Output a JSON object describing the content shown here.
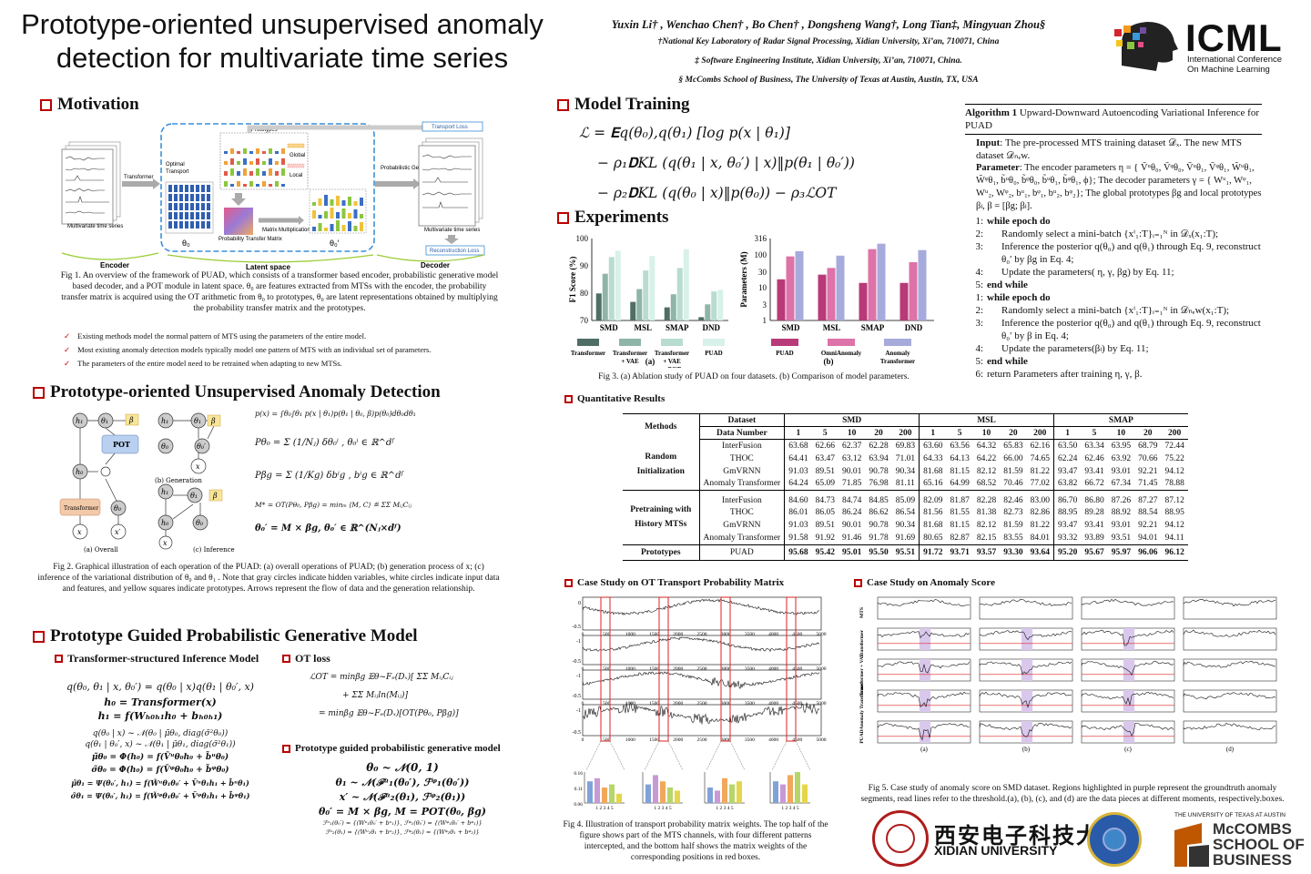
{
  "title": "Prototype-oriented unsupervised anomaly detection for multivariate time series",
  "authors": "Yuxin Li† , Wenchao Chen† , Bo Chen† , Dongsheng Wang†, Long Tian‡, Mingyuan Zhou§",
  "affiliations": [
    "†National Key Laboratory of Radar Signal Processing, Xidian University, Xi’an, 710071, China",
    "‡ Software Engineering Institute, Xidian University, Xi’an, 710071, China.",
    "§ McCombs School of Business,  The University of Texas at Austin,  Austin, TX,  USA"
  ],
  "icml": {
    "big": "ICML",
    "l1": "International Conference",
    "l2": "On Machine Learning"
  },
  "motivation": {
    "heading": "Motivation",
    "fig_labels": {
      "prototypes": "Prototypes",
      "global": "Global",
      "local": "Local",
      "transformer": "Transformer",
      "optimal": "Optimal",
      "transport": "Transport",
      "mts": "Multivariate time series",
      "mts2": "Multivariate time series",
      "ptm": "Probability Transfer Matrix",
      "mm": "Matrix Multiplication",
      "pg": "Probabilistic Generation",
      "tl": "Transport Loss",
      "rl": "Reconstruction Loss",
      "encoder": "Encoder",
      "latent": "Latent space",
      "decoder": "Decoder",
      "theta0": "θ₀",
      "theta0p": "θ₀′"
    },
    "caption": "Fig 1. An overview of the framework of PUAD, which consists of a transformer based encoder, probabilistic generative model based decoder, and a POT module in latent space. θ₀ are features extracted from MTSs with the encoder, the probability transfer matrix is acquired using the OT arithmetic from θ₀ to prototypes, θ₀ are latent representations obtained by multiplying the probability transfer matrix and the prototypes.",
    "bullets": [
      "Existing methods model the normal pattern of MTS using the parameters of the entire model.",
      "Most existing anomaly detection models typically model one pattern of MTS with an individual set of parameters.",
      "The parameters of the entire model need to be retrained when adapting to new MTSs."
    ]
  },
  "puad": {
    "heading": "Prototype-oriented Unsupervised Anomaly Detection",
    "labels": {
      "h1": "h₁",
      "t1": "θ₁",
      "beta": "β",
      "pot": "POT",
      "h0": "h₀",
      "t0": "θ₀",
      "transformer": "Transformer",
      "x": "x",
      "xp": "x′",
      "a": "(a) Overall",
      "b": "(b) Generation",
      "c": "(c) Inference",
      "t0p": "θ₀′"
    },
    "eqs": [
      "p(x) = ∫θ₀∫θ₁ p(x | θ₁)p(θ₁ | θ₀, β)p(θ₀)dθ₀dθ₁",
      "Pθ₀ = Σ (1/Nⱼ) δθ₀ⁱ ,  θ₀ⁱ ∈ ℝ^dᶠ",
      "Pβg = Σ (1/Kg) δbⁱg ,  bⁱg ∈ ℝ^dᶠ",
      "M* = OT(Pθ₀, Pβg) = minₘ ⟨M, C⟩ ≝ ΣΣ MᵢⱼCᵢⱼ",
      "θ₀′ = M × βg,  θ₀′ ∈ ℝ^(Nⱼ×dᶠ)"
    ],
    "caption": "Fig 2. Graphical illustration of each operation of the PUAD: (a) overall operations of PUAD; (b) generation process of x; (c) inference of the variational distribution of θ₀ and θ₁ . Note that gray circles indicate hidden variables, white circles indicate input data and features, and yellow squares indicate prototypes. Arrows represent the flow of data and the generation relationship."
  },
  "pgpgm": {
    "heading": "Prototype Guided Probabilistic Generative Model",
    "sub1": "Transformer-structured Inference Model",
    "eqs1": [
      "q(θ₀, θ₁ | x, θ₀′) = q(θ₀ | x)q(θ₁ | θ₀′, x)",
      "h₀ = Transformer(x)",
      "h₁ = f(Wₕ₀ₕ₁h₀ + bₕ₀ₕ₁)",
      "q(θ₀ | x) ~ 𝒩(θ₀ | μ̃θ₀, diag(σ̃²θ₀))",
      "q(θ₁ | θ₀′, x) ~ 𝒩(θ₁ | μ̃θ₁, diag(σ̃²θ₁))",
      "μ̃θ₀ = Φ(h₀) = f(Ṽᵘθ₀h₀ + b̃ᵘθ₀)",
      "σ̃θ₀ = Φ(h₀) = f(Ṽᵠθ₀h₀ + b̃ᵠθ₀)",
      "μ̃θ₁ = Ψ(θ₀′, h₁) = f(W̃ᵘθ₁θ₀′ + Ṽᵘθ₁h₁ + b̃ᵘθ₁)",
      "σ̃θ₁ = Ψ(θ₀′, h₁) = f(W̃ᵠθ₁θ₀′ + Ṽᵠθ₁h₁ + b̃ᵠθ₁)"
    ],
    "sub2": "OT loss",
    "eqs2": [
      "ℒOT = minβg 𝔼θ~Fₑ(Dₓ)[ ΣΣ MᵢⱼCᵢⱼ",
      "+ ΣΣ Mᵢⱼln(Mᵢⱼ)]",
      "= minβg 𝔼θ~Fₑ(Dₓ)[OT(Pθ₀, Pβg)]"
    ],
    "sub3": "Prototype guided probabilistic generative model",
    "eqs3": [
      "θ₀ ~ 𝒩(0, 1)",
      "θ₁ ~ 𝒩(ℱᵘ₁(θ₀′), ℱᵠ₁(θ₀′))",
      "x′ ~ 𝒩(ℱᵘ₂(θ₁), ℱᵠ₂(θ₁))",
      "θ₀′ = M × βg, M = POT(θ₀, βg)",
      "ℱᵘ₁(θ₀′) = {(Wᵘ₁θ₀′ + bᵘ₁)}, ℱᵠ₁(θ₀′) = {(Wᵠ₁θ₀′ + bᵠ₁)}",
      "ℱᵘ₂(θ₁) = {(Wᵘ₂θ₁ + bᵘ₂)}, ℱᵠ₂(θ₁) = {(Wᵠ₂θ₁ + bᵠ₂)}"
    ]
  },
  "training": {
    "heading": "Model Training",
    "eqs": [
      "ℒ = 𝐄q(θ₀),q(θ₁) [log p(x | θ₁)]",
      "− ρ₁𝐃KL (q(θ₁ | x, θ₀′) | x)‖p(θ₁ | θ₀′))",
      "− ρ₂𝐃KL (q(θ₀ | x)‖p(θ₀)) − ρ₃ℒOT"
    ]
  },
  "algorithm": {
    "title_b": "Algorithm 1",
    "title": " Upward-Downward Autoencoding Variational Inference for PUAD",
    "input_b": "Input",
    "input": ": The pre-processed MTS training dataset 𝒟ₓ. The new MTS dataset 𝒟ₙₑw.",
    "param_b": "Parameter",
    "param": ": The encoder parameters η = { Ṽᵘθ₀, Ṽᵠθ₀, Ṽᵘθ₁, Ṽᵠθ₁, W̃ᵘθ₁, W̃ᵠθ₁, b̃ᵘθ₀, b̃ᵠθ₀, b̃ᵘθ₁, b̃ᵠθ₁, ϕ}; The decoder parameters γ = { Wᵘ₁, Wᵠ₁, Wᵘ₂, Wᵠ₂, bᵘ₁, bᵠ₁, bᵘ₂, bᵠ₂}; The global prototypes βg and local prototypes βₗ, β = [βg; βₗ].",
    "lines": [
      {
        "n": "1:",
        "t": "while epoch do",
        "b": true,
        "i": 0
      },
      {
        "n": "2:",
        "t": "Randomly select a mini-batch {xⁱ₁:T}ᵢ₌₁ᴺ in 𝒟ₓ(x₁:T);",
        "b": false,
        "i": 1
      },
      {
        "n": "3:",
        "t": "Inference the posterior q(θ₀) and q(θ₁) through Eq. 9, reconstruct θ₀′ by βg in Eq. 4;",
        "b": false,
        "i": 1
      },
      {
        "n": "4:",
        "t": "Update the parameters( η, γ, βg) by Eq. 11;",
        "b": false,
        "i": 1
      },
      {
        "n": "5:",
        "t": "end while",
        "b": true,
        "i": 0
      },
      {
        "n": "1:",
        "t": "while epoch do",
        "b": true,
        "i": 0
      },
      {
        "n": "2:",
        "t": "Randomly select a mini-batch {xⁱ₁:T}ᵢ₌₁ᴺ in 𝒟ₙₑw(x₁:T);",
        "b": false,
        "i": 1
      },
      {
        "n": "3:",
        "t": "Inference the posterior q(θ₀) and q(θ₁) through Eq. 9, reconstruct θ₀′ by β in Eq. 4;",
        "b": false,
        "i": 1
      },
      {
        "n": "4:",
        "t": "Update the parameters(βₗ) by Eq. 11;",
        "b": false,
        "i": 1
      },
      {
        "n": "5:",
        "t": "end while",
        "b": true,
        "i": 0
      },
      {
        "n": "6:",
        "t": "return Parameters after training η, γ, β.",
        "b": false,
        "i": 0
      }
    ]
  },
  "experiments": {
    "heading": "Experiments",
    "caption": "Fig 3. (a) Ablation study of PUAD on four datasets. (b) Comparison of model parameters.",
    "sublabel_a": "(a)",
    "sublabel_b": "(b)"
  },
  "chart_data": [
    {
      "type": "bar",
      "title": "",
      "ylabel": "F1 Score (%)",
      "xlabel": "",
      "ylim": [
        70,
        100
      ],
      "yticks": [
        70,
        80,
        90,
        100
      ],
      "categories": [
        "SMD",
        "MSL",
        "SMAP",
        "DND"
      ],
      "series": [
        {
          "name": "Transformer",
          "color": "#4f6e66",
          "values": [
            79.9,
            76.8,
            74.8,
            71.2
          ]
        },
        {
          "name": "Transformer + VAE",
          "color": "#8fb5a8",
          "values": [
            87.1,
            81.5,
            79.6,
            75.9
          ]
        },
        {
          "name": "Transformer + VAE + POT",
          "color": "#b8dccf",
          "values": [
            93.2,
            88.3,
            89.2,
            80.6
          ]
        },
        {
          "name": "PUAD",
          "color": "#d8f1ea",
          "values": [
            95.5,
            93.6,
            96.1,
            81.2
          ]
        }
      ]
    },
    {
      "type": "bar",
      "title": "",
      "ylabel": "Parameters (M)",
      "xlabel": "",
      "scale": "log",
      "yticks": [
        1,
        3,
        10,
        30,
        100,
        316
      ],
      "categories": [
        "SMD",
        "MSL",
        "SMAP",
        "DND"
      ],
      "series": [
        {
          "name": "PUAD",
          "color": "#b83a78",
          "values": [
            18,
            25,
            14,
            14
          ]
        },
        {
          "name": "OmniAnomaly",
          "color": "#dd73a8",
          "values": [
            90,
            40,
            150,
            60
          ]
        },
        {
          "name": "Anomaly Transformer",
          "color": "#a7abdb",
          "values": [
            130,
            95,
            220,
            140
          ]
        }
      ]
    }
  ],
  "quant": {
    "heading": "Quantitative Results",
    "h_methods": "Methods",
    "h_dataset": "Dataset",
    "h_data_number": "Data Number",
    "datasets": [
      "SMD",
      "MSL",
      "SMAP"
    ],
    "numbers": [
      "1",
      "5",
      "10",
      "20",
      "200"
    ],
    "groups": [
      {
        "name": "Random Initialization",
        "rows": [
          {
            "m": "InterFusion",
            "v": [
              "63.68",
              "62.66",
              "62.37",
              "62.28",
              "69.83",
              "63.60",
              "63.56",
              "64.32",
              "65.83",
              "62.16",
              "63.50",
              "63.34",
              "63.95",
              "68.79",
              "72.44"
            ]
          },
          {
            "m": "THOC",
            "v": [
              "64.41",
              "63.47",
              "63.12",
              "63.94",
              "71.01",
              "64.33",
              "64.13",
              "64.22",
              "66.00",
              "74.65",
              "62.24",
              "62.46",
              "63.92",
              "70.66",
              "75.22"
            ]
          },
          {
            "m": "GmVRNN",
            "v": [
              "91.03",
              "89.51",
              "90.01",
              "90.78",
              "90.34",
              "81.68",
              "81.15",
              "82.12",
              "81.59",
              "81.22",
              "93.47",
              "93.41",
              "93.01",
              "92.21",
              "94.12"
            ]
          },
          {
            "m": "Anomaly Transformer",
            "v": [
              "64.24",
              "65.09",
              "71.85",
              "76.98",
              "81.11",
              "65.16",
              "64.99",
              "68.52",
              "70.46",
              "77.02",
              "63.82",
              "66.72",
              "67.34",
              "71.45",
              "78.88"
            ]
          }
        ]
      },
      {
        "name": "Pretraining with History MTSs",
        "rows": [
          {
            "m": "InterFusion",
            "v": [
              "84.60",
              "84.73",
              "84.74",
              "84.85",
              "85.09",
              "82.09",
              "81.87",
              "82.28",
              "82.46",
              "83.00",
              "86.70",
              "86.80",
              "87.26",
              "87.27",
              "87.12"
            ]
          },
          {
            "m": "THOC",
            "v": [
              "86.01",
              "86.05",
              "86.24",
              "86.62",
              "86.54",
              "81.56",
              "81.55",
              "81.38",
              "82.73",
              "82.86",
              "88.95",
              "89.28",
              "88.92",
              "88.54",
              "88.95"
            ]
          },
          {
            "m": "GmVRNN",
            "v": [
              "91.03",
              "89.51",
              "90.01",
              "90.78",
              "90.34",
              "81.68",
              "81.15",
              "82.12",
              "81.59",
              "81.22",
              "93.47",
              "93.41",
              "93.01",
              "92.21",
              "94.12"
            ]
          },
          {
            "m": "Anomaly Transformer",
            "v": [
              "91.58",
              "91.92",
              "91.46",
              "91.78",
              "91.69",
              "80.65",
              "82.87",
              "82.15",
              "83.55",
              "84.01",
              "93.32",
              "93.89",
              "93.51",
              "94.01",
              "94.11"
            ]
          }
        ]
      }
    ],
    "proto": {
      "name": "Prototypes",
      "m": "PUAD",
      "v": [
        "95.68",
        "95.42",
        "95.01",
        "95.50",
        "95.51",
        "91.72",
        "93.71",
        "93.57",
        "93.30",
        "93.64",
        "95.20",
        "95.67",
        "95.97",
        "96.06",
        "96.12"
      ]
    }
  },
  "ot_case": {
    "heading": "Case Study on OT Transport Probability Matrix",
    "ticks": [
      "0",
      "500",
      "1000",
      "1500",
      "2000",
      "2500",
      "3000",
      "3500",
      "4000",
      "4500",
      "5000"
    ],
    "ylabels": [
      "0",
      "-0.5",
      "-1",
      "-0.5",
      "-1",
      "-0.5",
      "-1",
      "-0.5",
      "-1",
      "-0.5",
      "-1"
    ],
    "bar_ticks": [
      "0.16",
      "0.11",
      "0.06"
    ],
    "bar_x": "1 2 3 4 5",
    "caption": "Fig 4. Illustration of transport probability matrix weights. The top half of the figure shows part of the MTS channels, with four different patterns intercepted, and the bottom half shows the matrix weights of the corresponding positions in red boxes."
  },
  "score_case": {
    "heading": "Case Study on Anomaly Score",
    "rows": [
      "MTS",
      "Transformer",
      "Transformer + VAE",
      "Anomaly Transformer",
      "PUAD"
    ],
    "cols": [
      "(a)",
      "(b)",
      "(c)",
      "(d)"
    ],
    "caption": "Fig 5. Case study of anomaly score on SMD dataset. Regions highlighted in purple represent the groundtruth anomaly segments, read lines refer to the threshold.(a), (b), (c), and (d) are the data pieces at different moments, respectively.boxes."
  },
  "logos": {
    "xidian_cn": "西安电子科技大学",
    "xidian_en": "XIDIAN UNIVERSITY",
    "ut": "THE UNIVERSITY OF TEXAS AT AUSTIN",
    "mccombs1": "McCOMBS",
    "mccombs2": "SCHOOL OF",
    "mccombs3": "BUSINESS"
  },
  "colors": {
    "accent": "#b00000",
    "dashed_blue": "#3a8fd8"
  }
}
